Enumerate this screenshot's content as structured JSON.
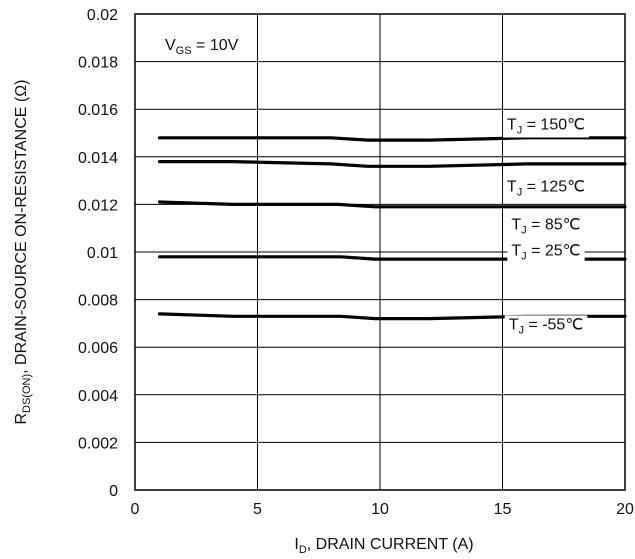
{
  "chart_data": {
    "type": "line",
    "xlabel": {
      "main": "I",
      "sub": "D",
      "rest": ", DRAIN CURRENT (A)"
    },
    "ylabel": {
      "main": "R",
      "sub": "DS(ON)",
      "rest": ",   DRAIN-SOURCE ON-RESISTANCE (Ω)"
    },
    "xlim": [
      0,
      20
    ],
    "ylim": [
      0,
      0.02
    ],
    "x_ticks": [
      "0",
      "5",
      "10",
      "15",
      "20"
    ],
    "y_ticks": [
      "0",
      "0.002",
      "0.004",
      "0.006",
      "0.008",
      "0.01",
      "0.012",
      "0.014",
      "0.016",
      "0.018",
      "0.02"
    ],
    "grid": true,
    "annotation": {
      "main": "V",
      "sub": "GS",
      "rest": " = 10V"
    },
    "series": [
      {
        "name": "TJ = 150℃",
        "label": {
          "main": "T",
          "sub": "J",
          "rest": " = 150℃"
        },
        "x": [
          1,
          4,
          8,
          9.5,
          10,
          12,
          16,
          20
        ],
        "y": [
          0.0148,
          0.0148,
          0.0148,
          0.0147,
          0.0147,
          0.0147,
          0.0148,
          0.0148
        ]
      },
      {
        "name": "TJ = 125℃",
        "label": {
          "main": "T",
          "sub": "J",
          "rest": " = 125℃"
        },
        "x": [
          1,
          4,
          8,
          9.5,
          10,
          12,
          16,
          20
        ],
        "y": [
          0.0138,
          0.0138,
          0.0137,
          0.0136,
          0.0136,
          0.0136,
          0.0137,
          0.0137
        ]
      },
      {
        "name": "TJ = 85℃",
        "label": {
          "main": "T",
          "sub": "J",
          "rest": " = 85℃"
        },
        "x": [
          1,
          4,
          8.3,
          9.8,
          10,
          12,
          16,
          20
        ],
        "y": [
          0.0121,
          0.012,
          0.012,
          0.0119,
          0.0119,
          0.0119,
          0.0119,
          0.0119
        ]
      },
      {
        "name": "TJ = 25℃",
        "label": {
          "main": "T",
          "sub": "J",
          "rest": " = 25℃"
        },
        "x": [
          1,
          4,
          8.4,
          9.8,
          10,
          12,
          16,
          20
        ],
        "y": [
          0.0098,
          0.0098,
          0.0098,
          0.0097,
          0.0097,
          0.0097,
          0.0097,
          0.0097
        ]
      },
      {
        "name": "TJ = -55℃",
        "label": {
          "main": "T",
          "sub": "J",
          "rest": " = -55℃"
        },
        "x": [
          1,
          4,
          8.4,
          9.8,
          10,
          12,
          16,
          20
        ],
        "y": [
          0.0074,
          0.0073,
          0.0073,
          0.0072,
          0.0072,
          0.0072,
          0.0073,
          0.0073
        ]
      }
    ]
  }
}
